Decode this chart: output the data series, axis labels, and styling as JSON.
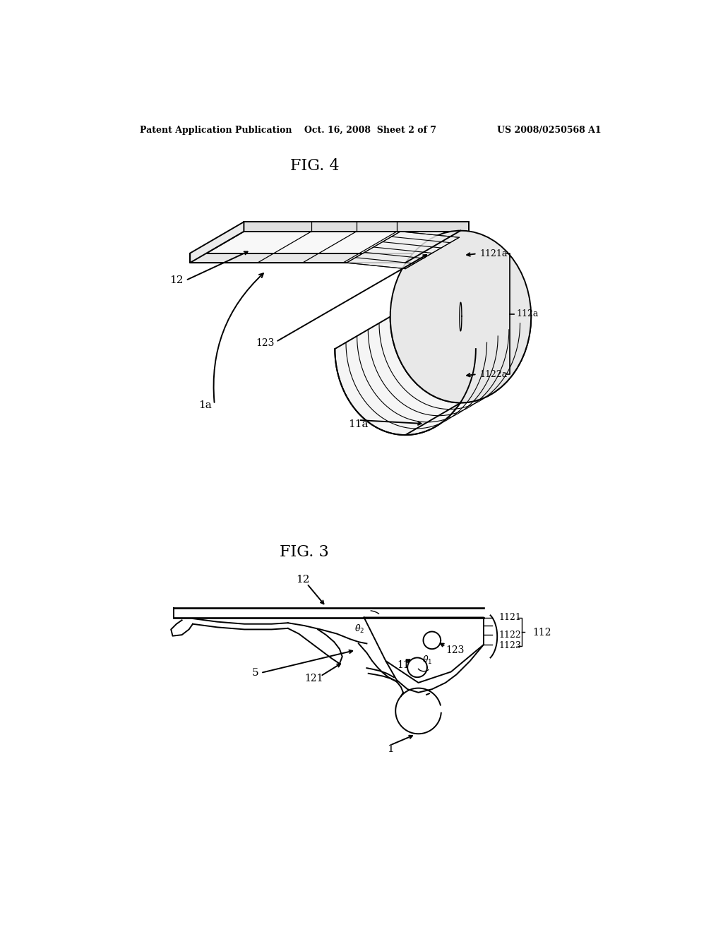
{
  "bg_color": "#ffffff",
  "line_color": "#000000",
  "header_left": "Patent Application Publication",
  "header_mid": "Oct. 16, 2008  Sheet 2 of 7",
  "header_right": "US 2008/0250568 A1",
  "fig3_label": "FIG. 3",
  "fig4_label": "FIG. 4"
}
